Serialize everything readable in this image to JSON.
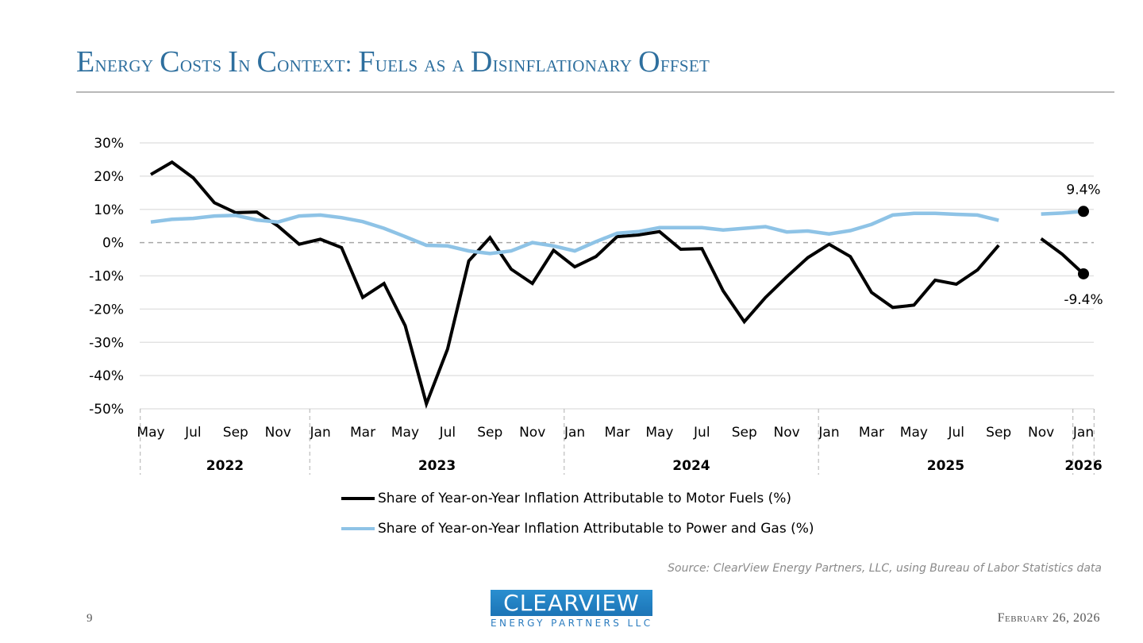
{
  "header": {
    "title": "Energy Costs In Context: Fuels as a Disinflationary Offset"
  },
  "footer": {
    "source": "Source: ClearView Energy Partners, LLC, using Bureau of Labor Statistics data",
    "page_number": "9",
    "date": "February 26, 2026",
    "logo_main": "CLEARVIEW",
    "logo_sub": "ENERGY PARTNERS LLC"
  },
  "colors": {
    "title": "#2e6f9e",
    "motor_fuels": "#000000",
    "power_gas": "#8ec3e6",
    "gridline": "#e3e3e3",
    "zero_line": "#a6a6a6"
  },
  "chart_data": {
    "type": "line",
    "title": "",
    "xlabel": "",
    "ylabel": "",
    "ylim": [
      -50,
      30
    ],
    "yticks": [
      30,
      20,
      10,
      0,
      -10,
      -20,
      -30,
      -40,
      -50
    ],
    "ytick_labels": [
      "30%",
      "20%",
      "10%",
      "0%",
      "-10%",
      "-20%",
      "-30%",
      "-40%",
      "-50%"
    ],
    "grid": true,
    "legend_position": "bottom",
    "x": [
      "2022-05",
      "2022-06",
      "2022-07",
      "2022-08",
      "2022-09",
      "2022-10",
      "2022-11",
      "2022-12",
      "2023-01",
      "2023-02",
      "2023-03",
      "2023-04",
      "2023-05",
      "2023-06",
      "2023-07",
      "2023-08",
      "2023-09",
      "2023-10",
      "2023-11",
      "2023-12",
      "2024-01",
      "2024-02",
      "2024-03",
      "2024-04",
      "2024-05",
      "2024-06",
      "2024-07",
      "2024-08",
      "2024-09",
      "2024-10",
      "2024-11",
      "2024-12",
      "2025-01",
      "2025-02",
      "2025-03",
      "2025-04",
      "2025-05",
      "2025-06",
      "2025-07",
      "2025-08",
      "2025-09",
      "2025-10",
      "2025-11",
      "2025-12",
      "2026-01"
    ],
    "month_tick_labels": [
      {
        "label": "May",
        "index": 0
      },
      {
        "label": "Jul",
        "index": 2
      },
      {
        "label": "Sep",
        "index": 4
      },
      {
        "label": "Nov",
        "index": 6
      },
      {
        "label": "Jan",
        "index": 8
      },
      {
        "label": "Mar",
        "index": 10
      },
      {
        "label": "May",
        "index": 12
      },
      {
        "label": "Jul",
        "index": 14
      },
      {
        "label": "Sep",
        "index": 16
      },
      {
        "label": "Nov",
        "index": 18
      },
      {
        "label": "Jan",
        "index": 20
      },
      {
        "label": "Mar",
        "index": 22
      },
      {
        "label": "May",
        "index": 24
      },
      {
        "label": "Jul",
        "index": 26
      },
      {
        "label": "Sep",
        "index": 28
      },
      {
        "label": "Nov",
        "index": 30
      },
      {
        "label": "Jan",
        "index": 32
      },
      {
        "label": "Mar",
        "index": 34
      },
      {
        "label": "May",
        "index": 36
      },
      {
        "label": "Jul",
        "index": 38
      },
      {
        "label": "Sep",
        "index": 40
      },
      {
        "label": "Nov",
        "index": 42
      },
      {
        "label": "Jan",
        "index": 44
      }
    ],
    "year_groups": [
      {
        "label": "2022",
        "start": 0,
        "end": 7
      },
      {
        "label": "2023",
        "start": 8,
        "end": 19
      },
      {
        "label": "2024",
        "start": 20,
        "end": 31
      },
      {
        "label": "2025",
        "start": 32,
        "end": 43
      },
      {
        "label": "2026",
        "start": 44,
        "end": 44
      }
    ],
    "series": [
      {
        "name": "Share of Year-on-Year Inflation Attributable to Motor Fuels (%)",
        "key": "motor_fuels",
        "values": [
          20.5,
          24.2,
          19.5,
          12.0,
          9.0,
          9.2,
          5.0,
          -0.5,
          1.0,
          -1.5,
          -16.5,
          -12.3,
          -25.0,
          -48.5,
          -32.0,
          -5.5,
          1.5,
          -8.0,
          -12.3,
          -2.3,
          -7.3,
          -4.2,
          1.8,
          2.3,
          3.3,
          -2.0,
          -1.8,
          -14.5,
          -23.8,
          -16.5,
          -10.3,
          -4.5,
          -0.5,
          -4.2,
          -15.0,
          -19.5,
          -18.8,
          -11.3,
          -12.5,
          -8.2,
          -0.8,
          null,
          1.2,
          -3.5,
          -9.4
        ],
        "end_label": "-9.4%"
      },
      {
        "name": "Share of Year-on-Year Inflation Attributable to Power and Gas (%)",
        "key": "power_gas",
        "values": [
          6.2,
          7.0,
          7.3,
          8.0,
          8.2,
          6.8,
          6.2,
          8.0,
          8.3,
          7.5,
          6.3,
          4.3,
          1.8,
          -0.8,
          -1.0,
          -2.5,
          -3.3,
          -2.5,
          0.0,
          -1.0,
          -2.5,
          0.3,
          2.8,
          3.3,
          4.5,
          4.5,
          4.5,
          3.8,
          4.3,
          4.8,
          3.2,
          3.5,
          2.6,
          3.6,
          5.5,
          8.3,
          8.8,
          8.8,
          8.5,
          8.3,
          6.7,
          null,
          8.6,
          8.9,
          9.4
        ],
        "end_label": "9.4%"
      }
    ]
  }
}
